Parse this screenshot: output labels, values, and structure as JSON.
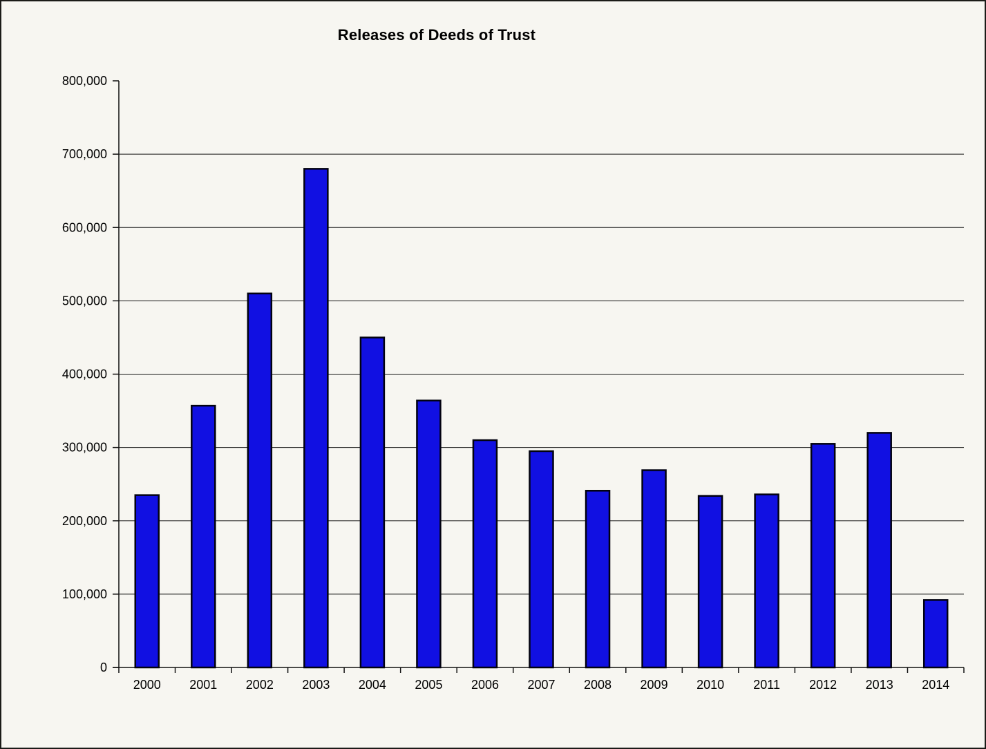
{
  "frame": {
    "background": "#f7f6f1",
    "border_color": "#1b1b18"
  },
  "chart_data": {
    "type": "bar",
    "title": "Releases of Deeds of Trust",
    "categories": [
      "2000",
      "2001",
      "2002",
      "2003",
      "2004",
      "2005",
      "2006",
      "2007",
      "2008",
      "2009",
      "2010",
      "2011",
      "2012",
      "2013",
      "2014"
    ],
    "values": [
      235000,
      357000,
      510000,
      680000,
      450000,
      364000,
      310000,
      295000,
      241000,
      269000,
      234000,
      236000,
      305000,
      320000,
      92000
    ],
    "xlabel": "",
    "ylabel": "",
    "ylim": [
      0,
      800000
    ],
    "ytick_interval": 100000,
    "ytick_labels": [
      "0",
      "100,000",
      "200,000",
      "300,000",
      "400,000",
      "500,000",
      "600,000",
      "700,000",
      "800,000"
    ],
    "grid": "horizontal",
    "gridline_levels": [
      100000,
      200000,
      300000,
      400000,
      500000,
      600000,
      700000
    ],
    "legend": "none",
    "bar_fill": "#1110e2",
    "bar_border": "#020210",
    "axis_color": "#111111",
    "text_color": "#000000",
    "axis_font_size": 18
  }
}
